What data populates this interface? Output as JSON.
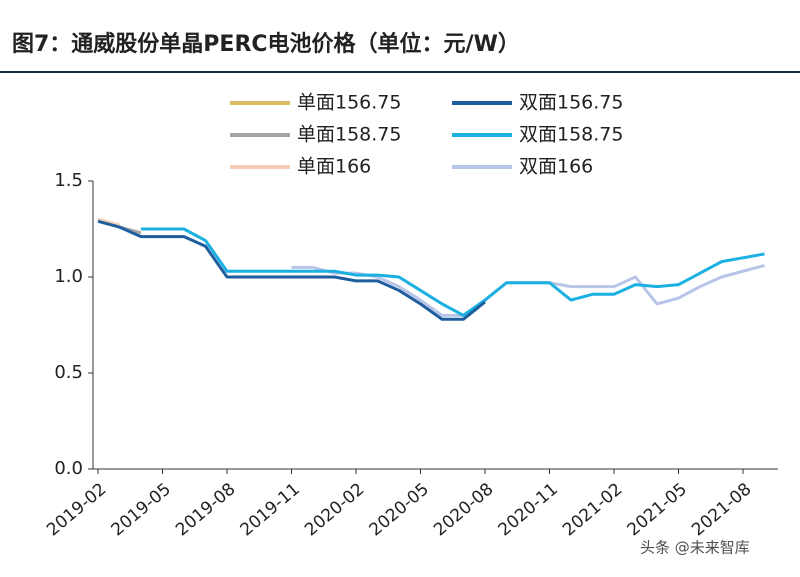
{
  "title": "图7：通威股份单晶PERC电池价格（单位：元/W）",
  "watermark": "头条 @未来智库",
  "chart_data": {
    "type": "line",
    "categories": [
      "2019-02",
      null,
      null,
      "2019-05",
      null,
      null,
      "2019-08",
      null,
      null,
      "2019-11",
      null,
      null,
      "2020-02",
      null,
      null,
      "2020-05",
      null,
      null,
      "2020-08",
      null,
      null,
      "2020-11",
      null,
      null,
      "2021-02",
      null,
      null,
      "2021-05",
      null,
      null,
      "2021-08",
      null
    ],
    "ylim": [
      0,
      1.5
    ],
    "yticks": [
      {
        "value": 0,
        "label": "0.0"
      },
      {
        "value": 0.5,
        "label": "0.5"
      },
      {
        "value": 1,
        "label": "1.0"
      },
      {
        "value": 1.5,
        "label": "1.5"
      }
    ],
    "grid": false,
    "series": [
      {
        "name": "单面156.75",
        "color": "#d9bb62",
        "values": [
          1.3,
          1.27,
          null,
          null,
          null,
          null,
          null,
          null,
          null,
          null,
          null,
          null,
          null,
          null,
          null,
          null,
          null,
          null,
          null,
          null,
          null,
          null,
          null,
          null,
          null,
          null,
          null,
          null,
          null,
          null,
          null,
          null
        ]
      },
      {
        "name": "双面156.75",
        "color": "#1f5e9e",
        "values": [
          1.29,
          1.26,
          1.21,
          1.21,
          1.21,
          1.16,
          1.0,
          1.0,
          1.0,
          1.0,
          1.0,
          1.0,
          0.98,
          0.98,
          0.93,
          0.86,
          0.78,
          0.78,
          0.87,
          null,
          null,
          null,
          null,
          null,
          null,
          null,
          null,
          null,
          null,
          null,
          null,
          null
        ]
      },
      {
        "name": "单面158.75",
        "color": "#a5a5a5",
        "values": [
          1.3,
          1.26,
          1.23,
          null,
          null,
          null,
          null,
          null,
          null,
          null,
          null,
          null,
          null,
          null,
          null,
          null,
          null,
          null,
          null,
          null,
          null,
          null,
          null,
          null,
          null,
          null,
          null,
          null,
          null,
          null,
          null,
          null
        ]
      },
      {
        "name": "双面158.75",
        "color": "#1bb0e2",
        "values": [
          null,
          null,
          1.25,
          1.25,
          1.25,
          1.19,
          1.03,
          1.03,
          1.03,
          1.03,
          1.03,
          1.03,
          1.01,
          1.01,
          1.0,
          0.93,
          0.86,
          0.8,
          0.88,
          0.97,
          0.97,
          0.97,
          0.88,
          0.91,
          0.91,
          0.96,
          0.95,
          0.96,
          1.02,
          1.08,
          1.1,
          1.12
        ]
      },
      {
        "name": "单面166",
        "color": "#f5cdb4",
        "values": [
          1.3,
          1.27,
          null,
          null,
          null,
          null,
          null,
          null,
          null,
          null,
          null,
          null,
          null,
          null,
          null,
          null,
          null,
          null,
          null,
          null,
          null,
          null,
          null,
          null,
          null,
          null,
          null,
          null,
          null,
          null,
          null,
          null
        ]
      },
      {
        "name": "双面166",
        "color": "#b9c5e8",
        "values": [
          null,
          null,
          null,
          null,
          null,
          null,
          null,
          null,
          null,
          1.05,
          1.05,
          1.02,
          1.02,
          1.0,
          0.95,
          0.88,
          0.8,
          0.8,
          0.88,
          0.97,
          0.97,
          0.97,
          0.95,
          0.95,
          0.95,
          1.0,
          0.86,
          0.89,
          0.95,
          1.0,
          1.03,
          1.06
        ]
      }
    ]
  }
}
